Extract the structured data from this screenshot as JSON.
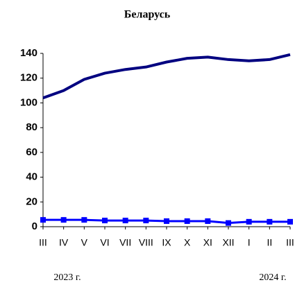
{
  "chart_data": {
    "type": "line",
    "title": "Беларусь",
    "categories": [
      "III",
      "IV",
      "V",
      "VI",
      "VII",
      "VIII",
      "IX",
      "X",
      "XI",
      "XII",
      "I",
      "II",
      "III"
    ],
    "series": [
      {
        "color": "#000080",
        "values": [
          104,
          110,
          119,
          124,
          127,
          129,
          133,
          136,
          137,
          135,
          134,
          135,
          139
        ]
      },
      {
        "color": "#0000ff",
        "marker": "square",
        "values": [
          5.5,
          5.5,
          5.5,
          5,
          5,
          5,
          4.5,
          4.5,
          4.5,
          3,
          4,
          4,
          4
        ]
      }
    ],
    "annotations": [
      "2023 г.",
      "2024 г."
    ],
    "ylim": [
      0,
      140
    ],
    "yticks": [
      0,
      20,
      40,
      60,
      80,
      100,
      120,
      140
    ],
    "grid": false
  }
}
